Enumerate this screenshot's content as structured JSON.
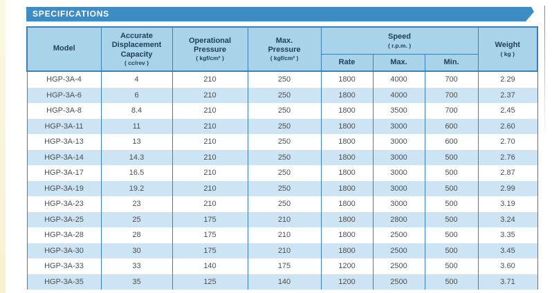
{
  "banner": {
    "title": "SPECIFICATIONS"
  },
  "colors": {
    "banner_blue": "#3e8cc4",
    "header_bg": "#a9d3e9",
    "row_stripe": "#cde4f4",
    "border_blue": "#3a7fb3",
    "header_text": "#1f3d5c",
    "body_text": "#4d4d4d",
    "page_edge_cream": "#f8f4d8"
  },
  "table": {
    "headers": {
      "model": "Model",
      "capacity": "Accurate\nDisplacement\nCapacity",
      "capacity_unit": "( cc/rev )",
      "op_pressure": "Operational\nPressure",
      "op_pressure_unit": "( kgf/cm² )",
      "max_pressure": "Max.\nPressure",
      "max_pressure_unit": "( kgf/cm² )",
      "speed": "Speed",
      "speed_unit": "( r.p.m. )",
      "rate": "Rate",
      "max": "Max.",
      "min": "Min.",
      "weight": "Weight",
      "weight_unit": "( kg )"
    },
    "rows": [
      [
        "HGP-3A-4",
        "4",
        "210",
        "250",
        "1800",
        "4000",
        "700",
        "2.29"
      ],
      [
        "HGP-3A-6",
        "6",
        "210",
        "250",
        "1800",
        "4000",
        "700",
        "2.37"
      ],
      [
        "HGP-3A-8",
        "8.4",
        "210",
        "250",
        "1800",
        "3500",
        "700",
        "2.45"
      ],
      [
        "HGP-3A-11",
        "11",
        "210",
        "250",
        "1800",
        "3000",
        "600",
        "2.60"
      ],
      [
        "HGP-3A-13",
        "13",
        "210",
        "250",
        "1800",
        "3000",
        "600",
        "2.70"
      ],
      [
        "HGP-3A-14",
        "14.3",
        "210",
        "250",
        "1800",
        "3000",
        "500",
        "2.76"
      ],
      [
        "HGP-3A-17",
        "16.5",
        "210",
        "250",
        "1800",
        "3000",
        "500",
        "2.87"
      ],
      [
        "HGP-3A-19",
        "19.2",
        "210",
        "250",
        "1800",
        "3000",
        "500",
        "2.99"
      ],
      [
        "HGP-3A-23",
        "23",
        "210",
        "250",
        "1800",
        "3000",
        "500",
        "3.19"
      ],
      [
        "HGP-3A-25",
        "25",
        "175",
        "210",
        "1800",
        "2800",
        "500",
        "3.24"
      ],
      [
        "HGP-3A-28",
        "28",
        "175",
        "210",
        "1800",
        "2500",
        "500",
        "3.35"
      ],
      [
        "HGP-3A-30",
        "30",
        "175",
        "210",
        "1800",
        "2500",
        "500",
        "3.45"
      ],
      [
        "HGP-3A-33",
        "33",
        "140",
        "175",
        "1200",
        "2500",
        "500",
        "3.60"
      ],
      [
        "HGP-3A-35",
        "35",
        "125",
        "140",
        "1200",
        "2500",
        "500",
        "3.71"
      ]
    ]
  }
}
